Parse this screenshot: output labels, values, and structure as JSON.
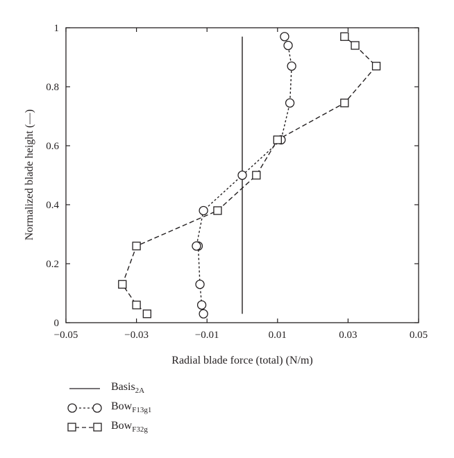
{
  "chart_data": {
    "type": "line",
    "xlabel": "Radial blade force (total) (N/m)",
    "ylabel": "Normalized blade height (—)",
    "xlim": [
      -0.05,
      0.05
    ],
    "ylim": [
      0,
      1
    ],
    "xticks": [
      -0.05,
      -0.03,
      -0.01,
      0.01,
      0.03,
      0.05
    ],
    "xtick_labels": [
      "−0.05",
      "−0.03",
      "−0.01",
      "0.01",
      "0.03",
      "0.05"
    ],
    "yticks": [
      0,
      0.2,
      0.4,
      0.6,
      0.8,
      1
    ],
    "ytick_labels": [
      "0",
      "0.2",
      "0.4",
      "0.6",
      "0.8",
      "1"
    ],
    "grid": false,
    "legend_position": "below-left",
    "series": [
      {
        "name": "Basis",
        "name_subscript": "2A",
        "line_style": "solid",
        "marker": "none",
        "x": [
          0.0,
          0.0
        ],
        "y": [
          0.03,
          0.97
        ]
      },
      {
        "name": "Bow",
        "name_subscript": "F13g1",
        "line_style": "dotted",
        "marker": "circle",
        "x": [
          -0.011,
          -0.0115,
          -0.012,
          -0.0125,
          -0.013,
          -0.011,
          0.0,
          0.011,
          0.0135,
          0.014,
          0.013,
          0.012
        ],
        "y": [
          0.03,
          0.06,
          0.13,
          0.26,
          0.26,
          0.38,
          0.5,
          0.62,
          0.745,
          0.87,
          0.94,
          0.97
        ]
      },
      {
        "name": "Bow",
        "name_subscript": "F32g",
        "line_style": "dashed",
        "marker": "square",
        "x": [
          -0.027,
          -0.03,
          -0.034,
          -0.03,
          -0.007,
          0.004,
          0.01,
          0.029,
          0.038,
          0.032,
          0.029
        ],
        "y": [
          0.03,
          0.06,
          0.13,
          0.26,
          0.38,
          0.5,
          0.62,
          0.745,
          0.87,
          0.94,
          0.97
        ]
      }
    ]
  }
}
